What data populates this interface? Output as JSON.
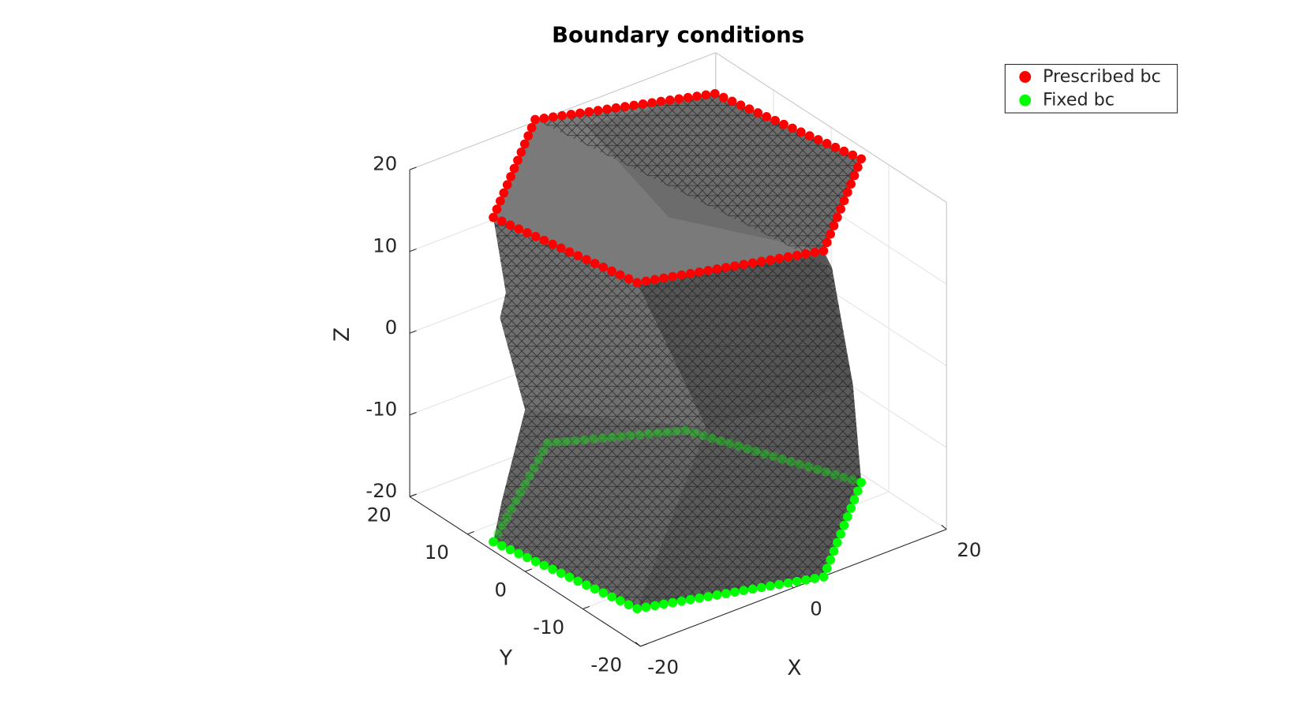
{
  "chart_data": {
    "type": "mesh3d",
    "title": "Boundary conditions",
    "xlabel": "X",
    "ylabel": "Y",
    "zlabel": "Z",
    "xlim": [
      -20,
      20
    ],
    "ylim": [
      -20,
      20
    ],
    "zlim": [
      -20,
      20
    ],
    "xticks": [
      -20,
      0,
      20
    ],
    "yticks": [
      -20,
      -10,
      0,
      10,
      20
    ],
    "zticks": [
      -20,
      -10,
      0,
      10,
      20
    ],
    "grid": true,
    "legend": "northeast",
    "series": [
      {
        "name": "Prescribed bc",
        "color": "#ff0000"
      },
      {
        "name": "Fixed bc",
        "color": "#00ff00"
      }
    ]
  }
}
